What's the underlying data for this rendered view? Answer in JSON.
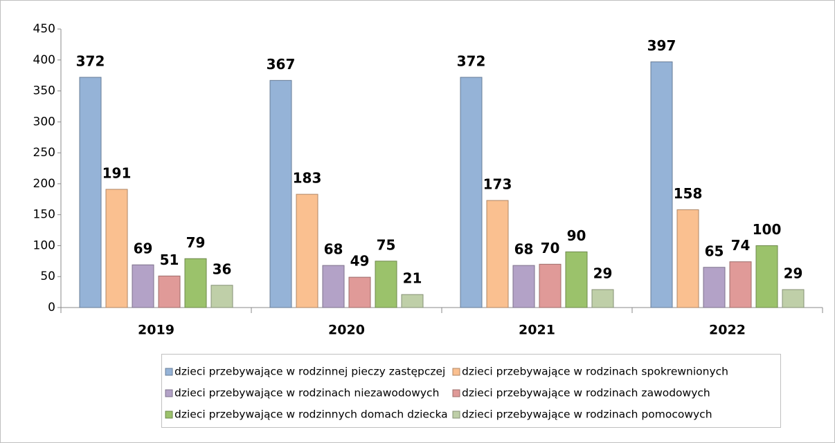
{
  "chart_data": {
    "type": "bar",
    "categories": [
      "2019",
      "2020",
      "2021",
      "2022"
    ],
    "series": [
      {
        "name": "dzieci przebywające w rodzinnej pieczy zastępczej",
        "color": "#95b3d7",
        "values": [
          372,
          367,
          372,
          397
        ]
      },
      {
        "name": "dzieci przebywające w rodzinach spokrewnionych",
        "color": "#fac090",
        "values": [
          191,
          183,
          173,
          158
        ]
      },
      {
        "name": "dzieci przebywające w rodzinach niezawodowych",
        "color": "#b3a2c7",
        "values": [
          69,
          68,
          68,
          65
        ]
      },
      {
        "name": "dzieci przebywające w rodzinach zawodowych",
        "color": "#e09a98",
        "values": [
          51,
          49,
          70,
          74
        ]
      },
      {
        "name": "dzieci przebywające w rodzinnych domach dziecka",
        "color": "#9bc26b",
        "values": [
          79,
          75,
          90,
          100
        ]
      },
      {
        "name": "dzieci przebywające w rodzinach pomocowych",
        "color": "#bfcfa8",
        "values": [
          36,
          21,
          29,
          29
        ]
      }
    ],
    "ylim": [
      0,
      450
    ],
    "yticks": [
      0,
      50,
      100,
      150,
      200,
      250,
      300,
      350,
      400,
      450
    ]
  }
}
